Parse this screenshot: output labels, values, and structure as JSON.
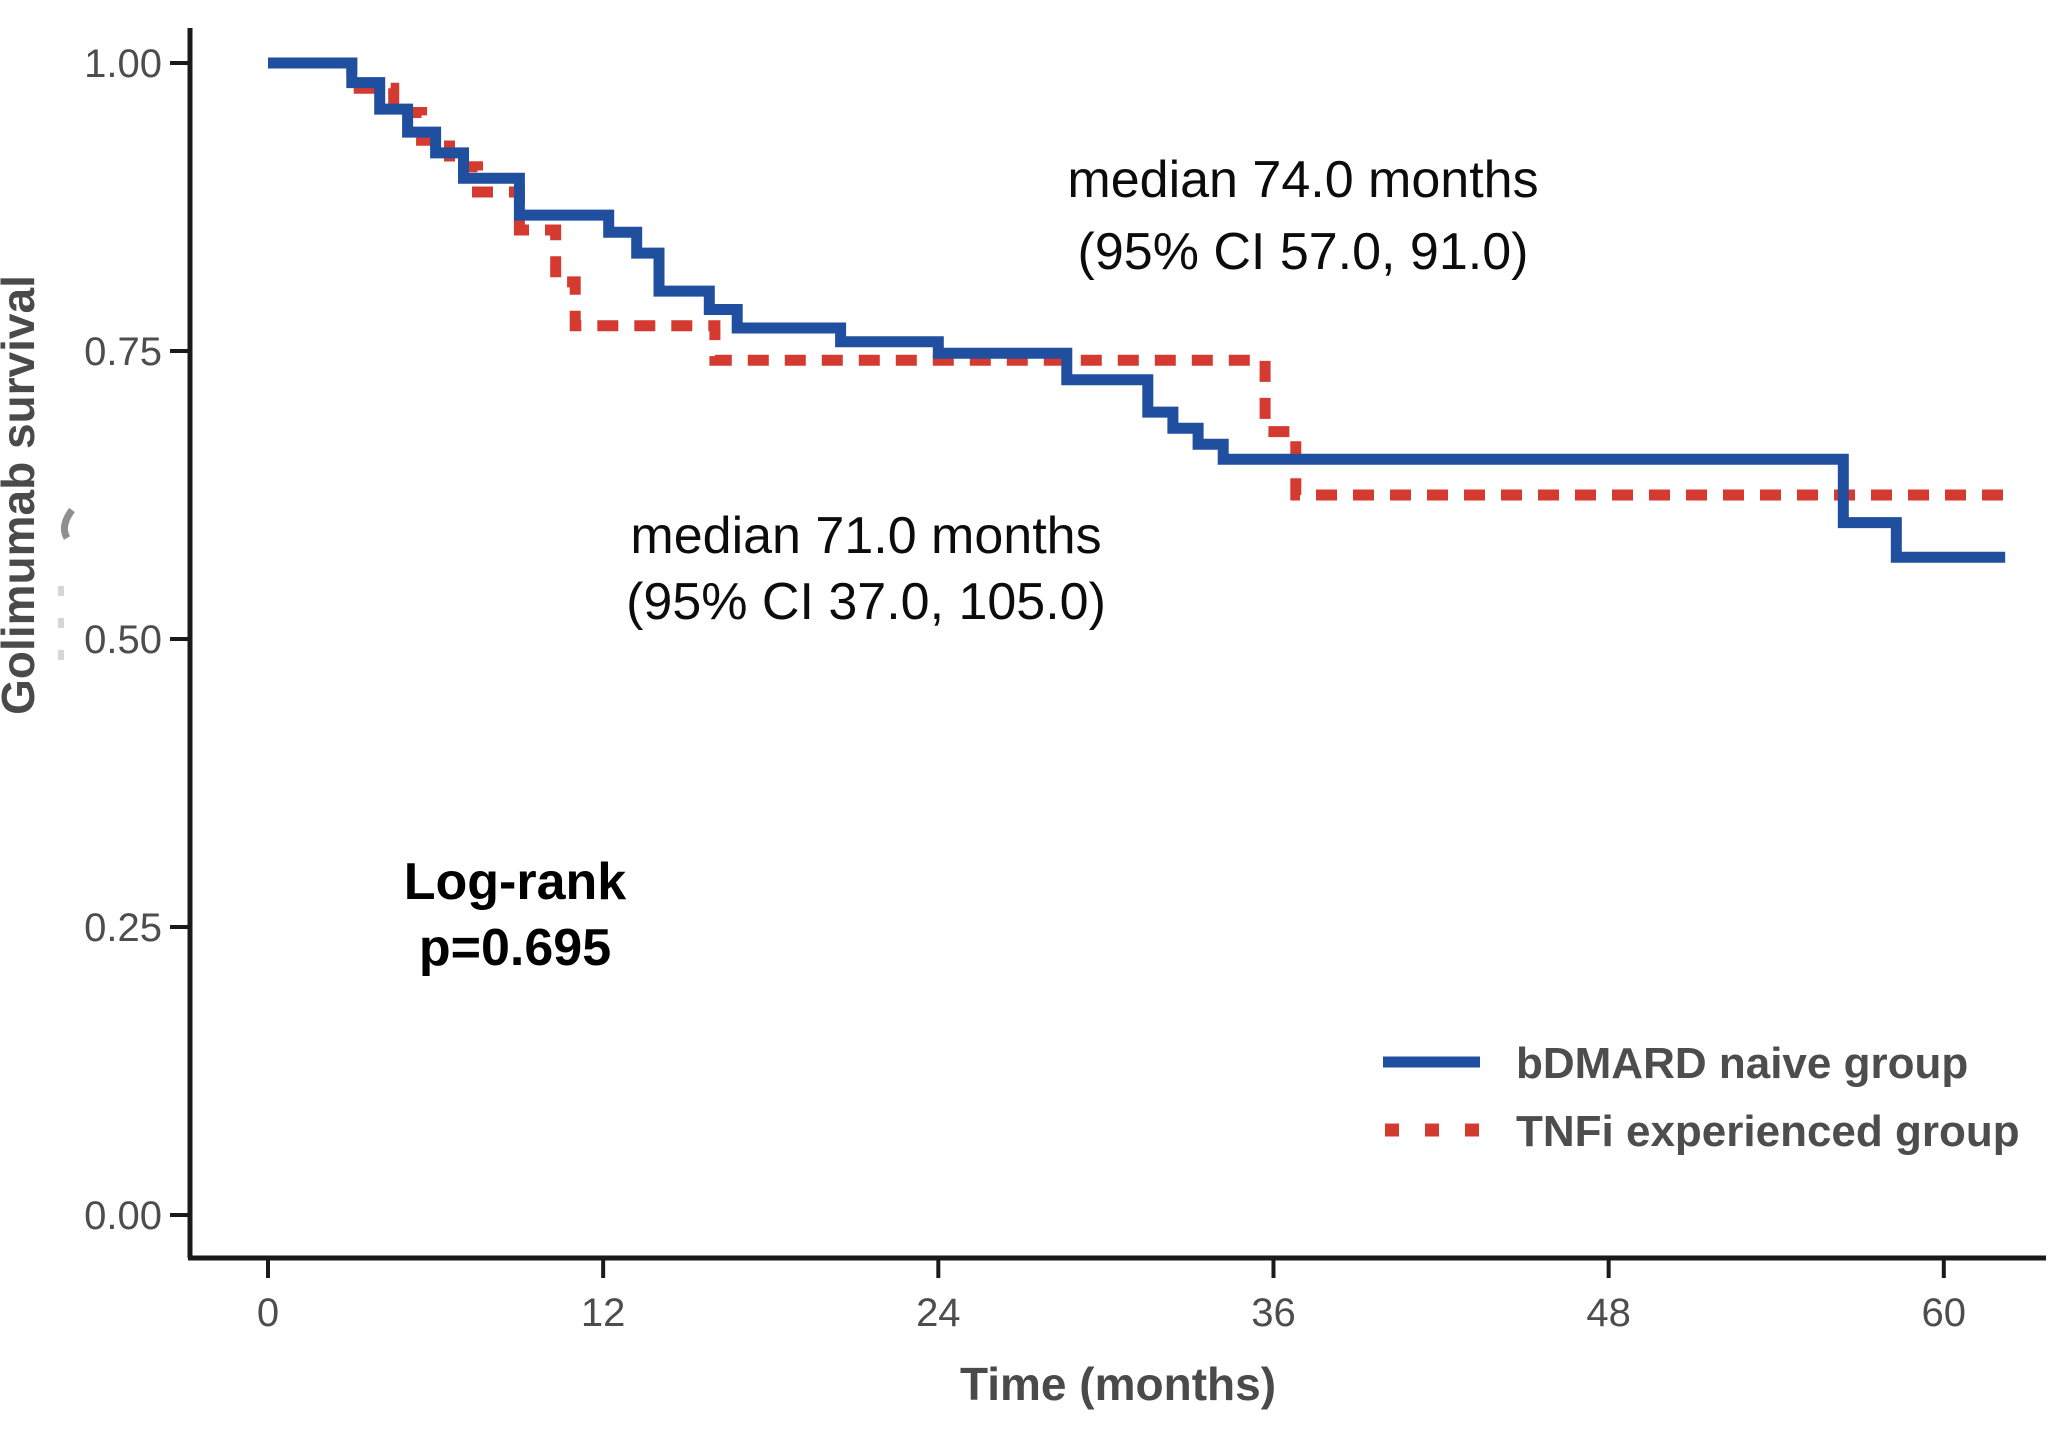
{
  "figure": {
    "ylabel": "Golimumab survival",
    "xlabel": "Time (months)",
    "y_tick_labels": [
      "0.00",
      "0.25",
      "0.50",
      "0.75",
      "1.00"
    ],
    "x_tick_labels": [
      "0",
      "12",
      "24",
      "36",
      "48",
      "60"
    ],
    "annotations": {
      "naive_median_line1": "median 74.0 months",
      "naive_median_line2": "(95% CI 57.0, 91.0)",
      "experienced_median_line1": "median 71.0 months",
      "experienced_median_line2": "(95% CI 37.0, 105.0)",
      "logrank_line1": "Log-rank",
      "logrank_line2": "p=0.695"
    },
    "legend": [
      {
        "label": "bDMARD naive group",
        "color": "#1f4f9e",
        "style": "solid"
      },
      {
        "label": "TNFi experienced group",
        "color": "#d53a31",
        "style": "dashed"
      }
    ],
    "colors": {
      "naive_blue": "#1f4f9e",
      "experienced_red": "#d53a31",
      "axis_line": "#1a1a1a",
      "tick_text": "#4d4d4d",
      "annotation_text": "#0c0c0c"
    }
  },
  "chart_data": {
    "type": "line",
    "subtype": "kaplan-meier-step-curves",
    "title": "",
    "xlabel": "Time (months)",
    "ylabel": "Golimumab survival",
    "xlim": [
      0,
      63.5
    ],
    "ylim": [
      0,
      1.0
    ],
    "x_ticks": [
      0,
      12,
      24,
      36,
      48,
      60
    ],
    "y_ticks": [
      0,
      0.25,
      0.5,
      0.75,
      1.0
    ],
    "grid": false,
    "legend_position": "bottom-right",
    "log_rank_p": 0.695,
    "series": [
      {
        "name": "bDMARD naive group",
        "color": "#1f4f9e",
        "line_style": "solid",
        "median_months": 74.0,
        "ci95": [
          57.0,
          91.0
        ],
        "end_x": 62.2,
        "steps": [
          [
            0,
            1.0
          ],
          [
            3,
            0.983
          ],
          [
            4,
            0.96
          ],
          [
            5,
            0.94
          ],
          [
            6,
            0.922
          ],
          [
            7,
            0.9
          ],
          [
            9,
            0.868
          ],
          [
            12.2,
            0.853
          ],
          [
            13.2,
            0.835
          ],
          [
            14,
            0.802
          ],
          [
            15.8,
            0.786
          ],
          [
            16.8,
            0.77
          ],
          [
            20.5,
            0.758
          ],
          [
            24,
            0.748
          ],
          [
            28.6,
            0.725
          ],
          [
            31.5,
            0.697
          ],
          [
            32.4,
            0.683
          ],
          [
            33.3,
            0.669
          ],
          [
            34.2,
            0.656
          ],
          [
            56.4,
            0.601
          ],
          [
            58.3,
            0.571
          ]
        ]
      },
      {
        "name": "TNFi experienced group",
        "color": "#d53a31",
        "line_style": "dashed",
        "median_months": 71.0,
        "ci95": [
          37.0,
          105.0
        ],
        "end_x": 62.4,
        "steps": [
          [
            0,
            1.0
          ],
          [
            3,
            0.978
          ],
          [
            4.5,
            0.957
          ],
          [
            5.5,
            0.933
          ],
          [
            6.5,
            0.91
          ],
          [
            7.5,
            0.888
          ],
          [
            9,
            0.855
          ],
          [
            10.3,
            0.81
          ],
          [
            11,
            0.772
          ],
          [
            16,
            0.742
          ],
          [
            35.7,
            0.68
          ],
          [
            36.8,
            0.625
          ]
        ]
      }
    ]
  }
}
